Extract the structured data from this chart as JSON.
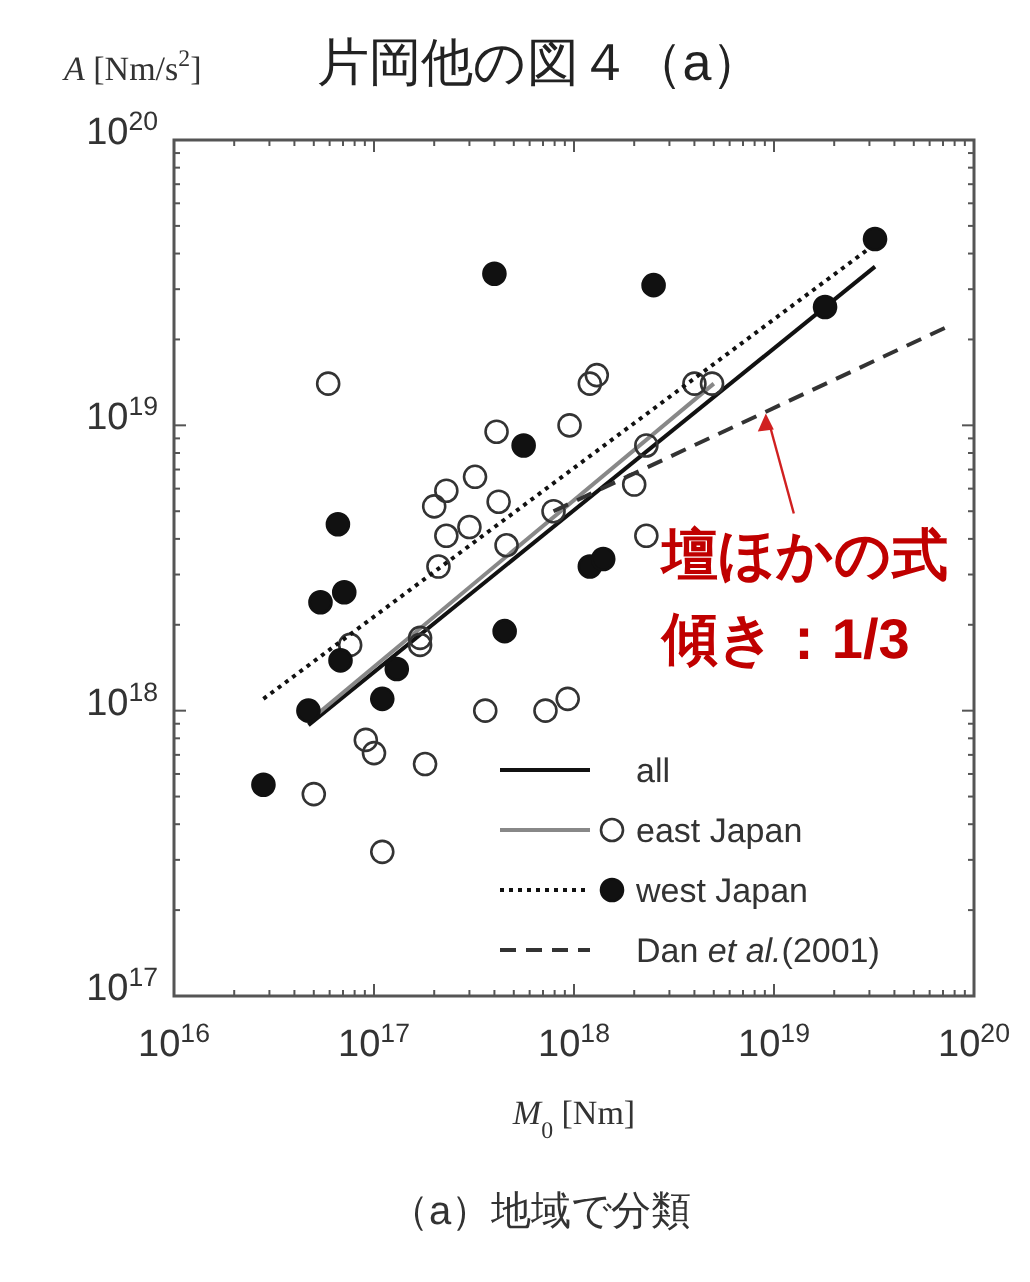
{
  "chart_data": {
    "type": "scatter",
    "title": "片岡他の図４（a）",
    "xlabel": "*M*$_{0}$ [Nm]",
    "ylabel": "*A* [Nm/s$^{2}$]",
    "log": "xy",
    "xlim": [
      1e+16,
      1e+20
    ],
    "ylim": [
      1e+17,
      1e+20
    ],
    "xticks": [
      {
        "value": 1e+16,
        "label": "10$^{16}$"
      },
      {
        "value": 1e+17,
        "label": "10$^{17}$"
      },
      {
        "value": 1e+18,
        "label": "10$^{18}$"
      },
      {
        "value": 1e+19,
        "label": "10$^{19}$"
      },
      {
        "value": 1e+20,
        "label": "10$^{20}$"
      }
    ],
    "yticks": [
      {
        "value": 1e+17,
        "label": "10$^{17}$"
      },
      {
        "value": 1e+18,
        "label": "10$^{18}$"
      },
      {
        "value": 1e+19,
        "label": "10$^{19}$"
      },
      {
        "value": 1e+20,
        "label": "10$^{20}$"
      }
    ],
    "grid": false,
    "legend": "bottom right",
    "series": [
      {
        "name": "all",
        "type": "line",
        "color": "#111111",
        "line_style": "solid",
        "marker": "none",
        "x": [
          4.7e+16,
          3.2e+19
        ],
        "values": [
          8.9e+17,
          3.6e+19
        ]
      },
      {
        "type": "line",
        "color": "#888888",
        "line_style": "solid",
        "marker": "none",
        "x": [
          5e+16,
          5e+18
        ],
        "values": [
          9.5e+17,
          1.4e+19
        ]
      },
      {
        "name": "east Japan",
        "type": "scatter",
        "color": "#333333",
        "marker": "circle-open",
        "x": [
          5.9e+16,
          4.1e+17,
          9.5e+17,
          1.3e+18,
          1.2e+18,
          4e+18,
          4.9e+18,
          2.3e+18,
          2e+18,
          2.3e+18,
          3.2e+17,
          2.3e+17,
          2e+17,
          4.2e+17,
          2.3e+17,
          3e+17,
          4.6e+17,
          7.9e+17,
          2.1e+17,
          1.7e+17,
          7.6e+16,
          1.7e+17,
          3.6e+17,
          7.2e+17,
          9.3e+17,
          9.1e+16,
          1e+17,
          1.8e+17,
          5e+16,
          1.1e+17
        ],
        "values": [
          1.4e+19,
          9.5e+18,
          1e+19,
          1.5e+19,
          1.4e+19,
          1.4e+19,
          1.4e+19,
          8.5e+18,
          6.2e+18,
          4.1e+18,
          6.6e+18,
          5.9e+18,
          5.2e+18,
          5.4e+18,
          4.1e+18,
          4.4e+18,
          3.8e+18,
          5e+18,
          3.2e+18,
          1.8e+18,
          1.7e+18,
          1.7e+18,
          1e+18,
          1e+18,
          1.1e+18,
          7.9e+17,
          7.1e+17,
          6.5e+17,
          5.1e+17,
          3.2e+17
        ]
      },
      {
        "type": "line",
        "color": "#111111",
        "line_style": "dotted",
        "marker": "none",
        "x": [
          2.8e+16,
          2.9e+19
        ],
        "values": [
          1.1e+18,
          4.1e+19
        ]
      },
      {
        "name": "west Japan",
        "type": "scatter",
        "color": "#111111",
        "marker": "circle",
        "x": [
          4e+17,
          2.5e+18,
          3.2e+19,
          1.8e+19,
          5.6e+17,
          6.6e+16,
          5.4e+16,
          7.1e+16,
          1.2e+18,
          1.4e+18,
          4.5e+17,
          4.7e+16,
          6.8e+16,
          1.3e+17,
          1.1e+17,
          2.8e+16
        ],
        "values": [
          3.4e+19,
          3.1e+19,
          4.5e+19,
          2.6e+19,
          8.5e+18,
          4.5e+18,
          2.4e+18,
          2.6e+18,
          3.2e+18,
          3.4e+18,
          1.9e+18,
          1e+18,
          1.5e+18,
          1.4e+18,
          1.1e+18,
          5.5e+17
        ]
      },
      {
        "name": "Dan *et al.*(2001)",
        "type": "line",
        "color": "#333333",
        "line_style": "dashed",
        "marker": "none",
        "x": [
          7.9e+17,
          7.2e+19
        ],
        "values": [
          5e+18,
          2.2e+19
        ]
      }
    ],
    "annotations": [
      {
        "text": "壇ほかの式",
        "x": 9.1e+18,
        "y": 1.1e+19
      },
      "傾き：1/3",
      "（a）地域で分類"
    ]
  }
}
